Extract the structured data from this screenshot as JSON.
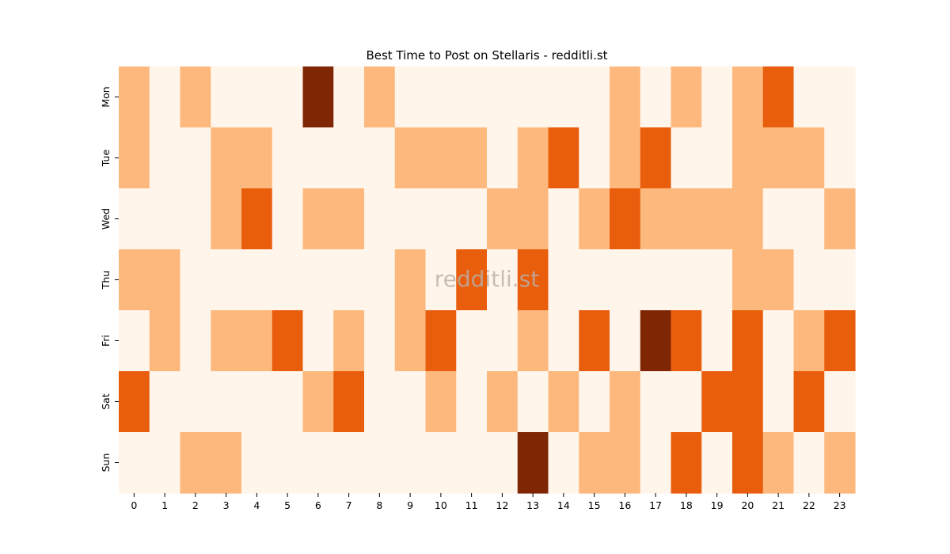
{
  "chart_data": {
    "type": "heatmap",
    "title": "Best Time to Post on Stellaris - redditli.st",
    "watermark": "redditli.st",
    "xlabel": "",
    "ylabel": "",
    "x_categories": [
      "0",
      "1",
      "2",
      "3",
      "4",
      "5",
      "6",
      "7",
      "8",
      "9",
      "10",
      "11",
      "12",
      "13",
      "14",
      "15",
      "16",
      "17",
      "18",
      "19",
      "20",
      "21",
      "22",
      "23"
    ],
    "y_categories": [
      "Mon",
      "Tue",
      "Wed",
      "Thu",
      "Fri",
      "Sat",
      "Sun"
    ],
    "values": [
      [
        1,
        0,
        1,
        0,
        0,
        0,
        3,
        0,
        1,
        0,
        0,
        0,
        0,
        0,
        0,
        0,
        1,
        0,
        1,
        0,
        1,
        2,
        0,
        0
      ],
      [
        1,
        0,
        0,
        1,
        1,
        0,
        0,
        0,
        0,
        1,
        1,
        1,
        0,
        1,
        2,
        0,
        1,
        2,
        0,
        0,
        1,
        1,
        1,
        0
      ],
      [
        0,
        0,
        0,
        1,
        2,
        0,
        1,
        1,
        0,
        0,
        0,
        0,
        1,
        1,
        0,
        1,
        2,
        1,
        1,
        1,
        1,
        0,
        0,
        1
      ],
      [
        1,
        1,
        0,
        0,
        0,
        0,
        0,
        0,
        0,
        1,
        0,
        2,
        0,
        2,
        0,
        0,
        0,
        0,
        0,
        0,
        1,
        1,
        0,
        0
      ],
      [
        0,
        1,
        0,
        1,
        1,
        2,
        0,
        1,
        0,
        1,
        2,
        0,
        0,
        1,
        0,
        2,
        0,
        3,
        2,
        0,
        2,
        0,
        1,
        2
      ],
      [
        2,
        0,
        0,
        0,
        0,
        0,
        1,
        2,
        0,
        0,
        1,
        0,
        1,
        0,
        1,
        0,
        1,
        0,
        0,
        2,
        2,
        0,
        2,
        0
      ],
      [
        0,
        0,
        1,
        1,
        0,
        0,
        0,
        0,
        0,
        0,
        0,
        0,
        0,
        3,
        0,
        1,
        1,
        0,
        2,
        0,
        2,
        1,
        0,
        1
      ]
    ],
    "value_range": [
      0,
      3
    ],
    "colormap": "Oranges",
    "level_colors": [
      "#fff5eb",
      "#fdb97d",
      "#e95e0d",
      "#7f2704"
    ],
    "colorbar": false,
    "grid": false
  }
}
